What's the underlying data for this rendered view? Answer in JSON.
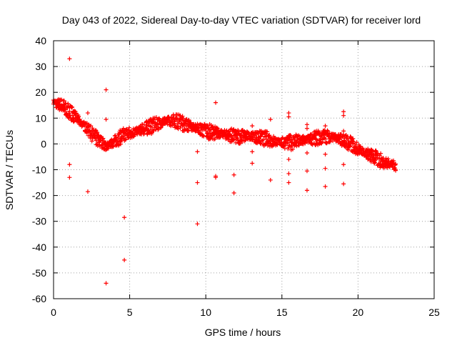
{
  "chart_data": {
    "type": "scatter",
    "title": "Day 043 of 2022, Sidereal Day-to-day VTEC variation (SDTVAR) for receiver lord",
    "xlabel": "GPS time / hours",
    "ylabel": "SDTVAR / TECUs",
    "xlim": [
      0,
      25
    ],
    "ylim": [
      -60,
      40
    ],
    "xticks": [
      "0",
      "5",
      "10",
      "15",
      "20",
      "25"
    ],
    "yticks": [
      "40",
      "30",
      "20",
      "10",
      "0",
      "-10",
      "-20",
      "-30",
      "-40",
      "-50",
      "-60"
    ],
    "xtick_values": [
      0,
      5,
      10,
      15,
      20,
      25
    ],
    "ytick_values": [
      40,
      30,
      20,
      10,
      0,
      -10,
      -20,
      -30,
      -40,
      -50,
      -60
    ],
    "grid": true,
    "marker": "+",
    "color": "#ff0000",
    "trend": {
      "x": [
        0.0,
        0.5,
        1.0,
        1.5,
        2.0,
        2.5,
        3.0,
        3.5,
        4.0,
        4.5,
        5.0,
        5.5,
        6.0,
        6.5,
        7.0,
        7.5,
        8.0,
        8.5,
        9.0,
        9.5,
        10.0,
        10.5,
        11.0,
        11.5,
        12.0,
        12.5,
        13.0,
        13.5,
        14.0,
        14.5,
        15.0,
        15.5,
        16.0,
        16.5,
        17.0,
        17.5,
        18.0,
        18.5,
        19.0,
        19.5,
        20.0,
        20.5,
        21.0,
        21.5,
        22.0,
        22.5
      ],
      "y": [
        16,
        15,
        13,
        10,
        7,
        4,
        1,
        -1,
        1,
        3,
        4,
        5,
        6,
        7,
        8,
        9,
        9,
        8,
        7,
        6,
        5,
        4.5,
        4,
        3.5,
        3,
        3,
        3,
        2.5,
        2,
        1,
        0.5,
        0.5,
        1,
        1.5,
        2,
        2.5,
        3,
        2.5,
        1.5,
        0,
        -2,
        -3.5,
        -5,
        -6.5,
        -7.5,
        -8.5
      ]
    },
    "outliers": [
      {
        "x": 1.05,
        "y": 33
      },
      {
        "x": 1.05,
        "y": -8
      },
      {
        "x": 1.05,
        "y": -13
      },
      {
        "x": 2.25,
        "y": 12
      },
      {
        "x": 2.25,
        "y": -18.5
      },
      {
        "x": 3.45,
        "y": 21
      },
      {
        "x": 3.45,
        "y": 9.5
      },
      {
        "x": 3.45,
        "y": -54
      },
      {
        "x": 4.65,
        "y": -28.5
      },
      {
        "x": 4.65,
        "y": -45
      },
      {
        "x": 9.45,
        "y": -3
      },
      {
        "x": 9.45,
        "y": -15
      },
      {
        "x": 9.45,
        "y": -31
      },
      {
        "x": 10.65,
        "y": 16
      },
      {
        "x": 10.65,
        "y": -12.5
      },
      {
        "x": 10.65,
        "y": -13
      },
      {
        "x": 11.85,
        "y": -12
      },
      {
        "x": 11.85,
        "y": -19
      },
      {
        "x": 13.05,
        "y": 7
      },
      {
        "x": 13.05,
        "y": -3
      },
      {
        "x": 13.05,
        "y": -7.5
      },
      {
        "x": 14.25,
        "y": 9.5
      },
      {
        "x": 14.25,
        "y": -14
      },
      {
        "x": 15.45,
        "y": 12
      },
      {
        "x": 15.45,
        "y": 10.5
      },
      {
        "x": 15.45,
        "y": -6
      },
      {
        "x": 15.45,
        "y": -11.5
      },
      {
        "x": 15.45,
        "y": -15
      },
      {
        "x": 16.65,
        "y": 7.5
      },
      {
        "x": 16.65,
        "y": 6
      },
      {
        "x": 16.65,
        "y": -3.5
      },
      {
        "x": 16.65,
        "y": -10.5
      },
      {
        "x": 16.65,
        "y": -18
      },
      {
        "x": 17.85,
        "y": 7
      },
      {
        "x": 17.85,
        "y": -4
      },
      {
        "x": 17.85,
        "y": -9.5
      },
      {
        "x": 17.85,
        "y": -16.5
      },
      {
        "x": 19.05,
        "y": 12.5
      },
      {
        "x": 19.05,
        "y": 11
      },
      {
        "x": 19.05,
        "y": 5
      },
      {
        "x": 19.05,
        "y": -8
      },
      {
        "x": 19.05,
        "y": -15.5
      }
    ]
  }
}
